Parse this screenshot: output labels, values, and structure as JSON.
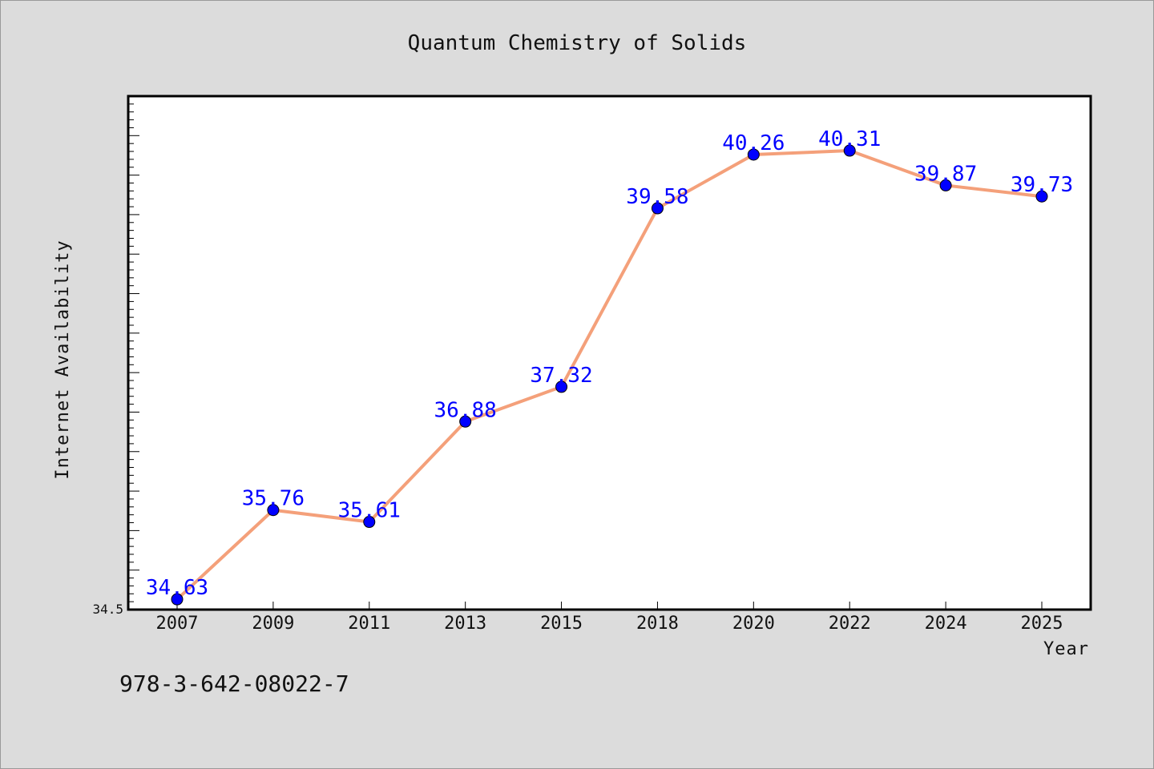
{
  "chart_data": {
    "type": "line",
    "title": "Quantum Chemistry of Solids",
    "xlabel": "Year",
    "ylabel": "Internet Availability",
    "categories": [
      "2007",
      "2009",
      "2011",
      "2013",
      "2015",
      "2018",
      "2020",
      "2022",
      "2024",
      "2025"
    ],
    "series": [
      {
        "values": [
          34.63,
          35.76,
          35.61,
          36.88,
          37.32,
          39.58,
          40.26,
          40.31,
          39.87,
          39.73
        ]
      }
    ],
    "ylim": [
      34.5,
      41.0
    ],
    "ytick_labels": [
      "34.5"
    ],
    "grid": false,
    "data_labels": true,
    "colors": {
      "line": "#f4a07a",
      "marker": "#0000ff",
      "label": "#0000ff",
      "plot_bg": "#ffffff",
      "page_bg": "#dcdcdc"
    }
  },
  "footer": {
    "isbn": "978-3-642-08022-7"
  }
}
